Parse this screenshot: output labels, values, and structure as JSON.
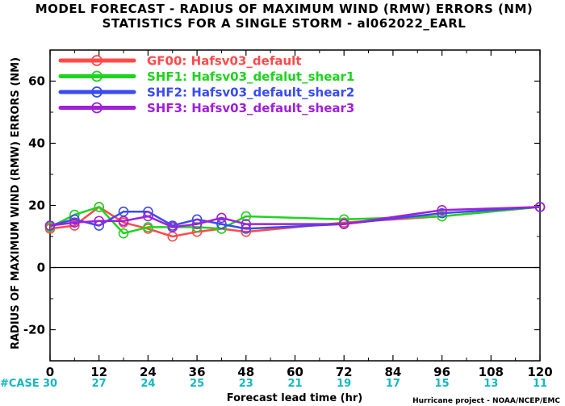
{
  "chart_data": {
    "type": "line",
    "title": "MODEL FORECAST - RADIUS OF MAXIMUM WIND (RMW) ERRORS (NM)",
    "subtitle": "STATISTICS FOR A SINGLE STORM - al062022_EARL",
    "xlabel": "Forecast lead time (hr)",
    "ylabel": "RADIUS OF MAXIMUM WIND (RMW) ERRORS (NM)",
    "xlim": [
      0,
      120
    ],
    "ylim": [
      -30,
      70
    ],
    "x_ticks": [
      0,
      12,
      24,
      36,
      48,
      60,
      72,
      84,
      96,
      108,
      120
    ],
    "y_ticks": [
      -20,
      0,
      20,
      40,
      60
    ],
    "y_tick_labels": [
      "-20",
      "0",
      "20",
      "40",
      "60"
    ],
    "case_label": "#CASE",
    "case_counts": [
      30,
      27,
      24,
      25,
      23,
      21,
      19,
      17,
      15,
      13,
      11
    ],
    "credit": "Hurricane project - NOAA/NCEP/EMC",
    "legend_position": "top-left",
    "grid": false,
    "series": [
      {
        "name": "GF00: Hafsv03_default",
        "color": "#ff4a4a",
        "x": [
          0,
          6,
          12,
          18,
          24,
          30,
          36,
          42,
          48,
          72,
          96,
          120
        ],
        "y": [
          12.5,
          13.5,
          19.5,
          14.5,
          12.5,
          10,
          11.5,
          12.5,
          11.5,
          14.5,
          16.5,
          19.5
        ]
      },
      {
        "name": "SHF1: Hafsv03_defalut_shear1",
        "color": "#1ed41e",
        "x": [
          0,
          6,
          12,
          18,
          24,
          30,
          36,
          42,
          48,
          72,
          96,
          120
        ],
        "y": [
          13,
          17,
          19.5,
          11,
          13,
          13,
          13,
          12.5,
          16.5,
          15.5,
          16.5,
          19.5
        ]
      },
      {
        "name": "SHF2: Hafsv03_default_shear2",
        "color": "#3a4cf0",
        "x": [
          0,
          6,
          12,
          18,
          24,
          30,
          36,
          42,
          48,
          72,
          96,
          120
        ],
        "y": [
          13.5,
          15.5,
          13.5,
          18,
          18,
          13.5,
          15.5,
          14,
          12.5,
          14,
          17.5,
          19.5
        ]
      },
      {
        "name": "SHF3: Hafsv03_default_shear3",
        "color": "#a020d8",
        "x": [
          0,
          6,
          12,
          18,
          24,
          30,
          36,
          42,
          48,
          72,
          96,
          120
        ],
        "y": [
          13.5,
          14.5,
          15,
          15,
          16.5,
          13,
          14,
          16,
          14,
          14,
          18.5,
          19.5
        ]
      }
    ]
  }
}
